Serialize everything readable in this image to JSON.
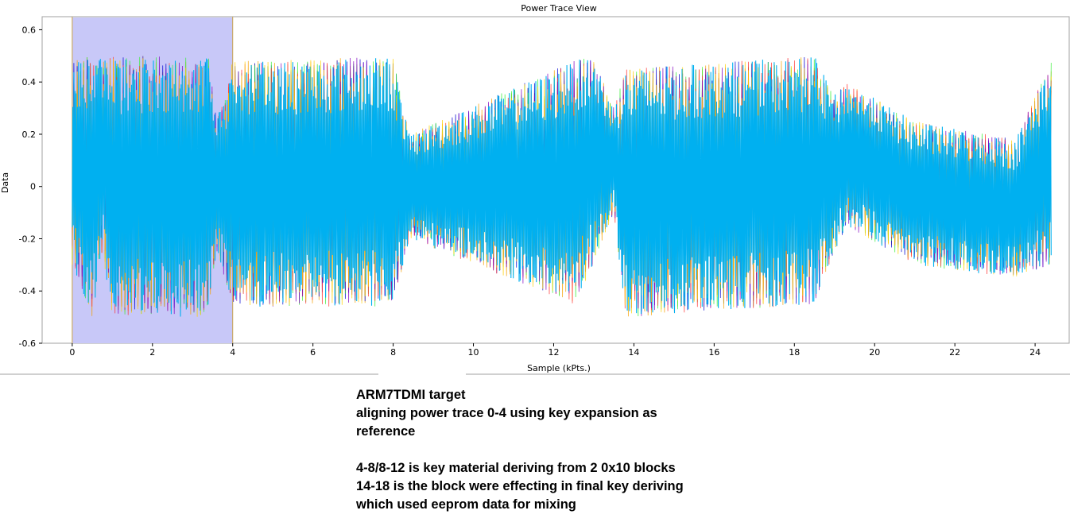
{
  "chart_data": {
    "type": "line",
    "title": "Power Trace View",
    "xlabel": "Sample (kPts.)",
    "ylabel": "Data",
    "xlim": [
      -0.75,
      24.85
    ],
    "ylim": [
      -0.6,
      0.65
    ],
    "x_ticks": [
      0,
      2,
      4,
      6,
      8,
      10,
      12,
      14,
      16,
      18,
      20,
      22,
      24
    ],
    "y_ticks": [
      -0.6,
      -0.4,
      -0.2,
      0,
      0.2,
      0.4,
      0.6
    ],
    "x_tick_labels": [
      "0",
      "2",
      "4",
      "6",
      "8",
      "10",
      "12",
      "14",
      "16",
      "18",
      "20",
      "22",
      "24"
    ],
    "y_tick_labels": [
      "-0.6",
      "-0.4",
      "-0.2",
      "0",
      "0.2",
      "0.4",
      "0.6"
    ],
    "highlight_region": {
      "x_start": 0,
      "x_end": 4,
      "fill": "#c8c8f8",
      "edge": "#c8a04a"
    },
    "grid": false,
    "series_colors": [
      "#f5a000",
      "#0000d0",
      "#33ee33",
      "#ff3030",
      "#8000c0",
      "#ffd000",
      "#00b0f0"
    ],
    "envelope": [
      {
        "x": 0.0,
        "low": -0.3,
        "high": 0.48
      },
      {
        "x": 0.5,
        "low": -0.5,
        "high": 0.5
      },
      {
        "x": 0.75,
        "low": -0.25,
        "high": 0.5
      },
      {
        "x": 1.0,
        "low": -0.5,
        "high": 0.5
      },
      {
        "x": 3.4,
        "low": -0.5,
        "high": 0.5
      },
      {
        "x": 3.6,
        "low": -0.25,
        "high": 0.25
      },
      {
        "x": 4.0,
        "low": -0.46,
        "high": 0.48
      },
      {
        "x": 8.0,
        "low": -0.46,
        "high": 0.5
      },
      {
        "x": 8.4,
        "low": -0.2,
        "high": 0.2
      },
      {
        "x": 12.5,
        "low": -0.45,
        "high": 0.48
      },
      {
        "x": 13.0,
        "low": -0.3,
        "high": 0.5
      },
      {
        "x": 13.5,
        "low": -0.1,
        "high": 0.3
      },
      {
        "x": 13.8,
        "low": -0.5,
        "high": 0.45
      },
      {
        "x": 18.5,
        "low": -0.45,
        "high": 0.5
      },
      {
        "x": 19.0,
        "low": -0.25,
        "high": 0.35
      },
      {
        "x": 19.3,
        "low": -0.15,
        "high": 0.4
      },
      {
        "x": 21.0,
        "low": -0.3,
        "high": 0.25
      },
      {
        "x": 23.5,
        "low": -0.35,
        "high": 0.18
      },
      {
        "x": 24.4,
        "low": -0.3,
        "high": 0.48
      }
    ]
  },
  "annotation": {
    "line1": "ARM7TDMI target",
    "line2": "aligning power trace 0-4 using key expansion as",
    "line3": "reference",
    "line4": "4-8/8-12 is key material deriving from 2 0x10 blocks",
    "line5": "14-18 is the block were effecting in final key deriving",
    "line6": "which used eeprom data for mixing"
  }
}
